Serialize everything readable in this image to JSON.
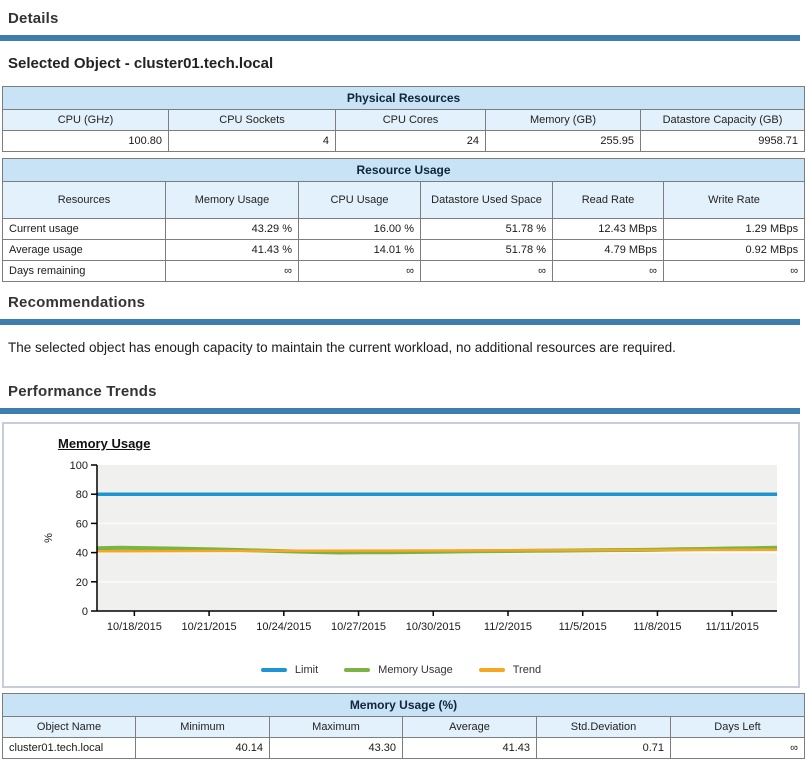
{
  "page": {
    "details_title": "Details",
    "selected_object_title": "Selected Object - cluster01.tech.local",
    "recommendations_title": "Recommendations",
    "recommendations_text": "The selected object has enough capacity to maintain the current workload, no additional resources are required.",
    "performance_trends_title": "Performance Trends"
  },
  "physical_resources": {
    "title": "Physical Resources",
    "columns": [
      "CPU (GHz)",
      "CPU Sockets",
      "CPU Cores",
      "Memory (GB)",
      "Datastore Capacity (GB)"
    ],
    "values": [
      "100.80",
      "4",
      "24",
      "255.95",
      "9958.71"
    ]
  },
  "resource_usage": {
    "title": "Resource Usage",
    "columns": [
      "Resources",
      "Memory Usage",
      "CPU Usage",
      "Datastore Used Space",
      "Read Rate",
      "Write Rate"
    ],
    "rows": [
      {
        "label": "Current usage",
        "values": [
          "43.29 %",
          "16.00 %",
          "51.78 %",
          "12.43 MBps",
          "1.29 MBps"
        ]
      },
      {
        "label": "Average usage",
        "values": [
          "41.43 %",
          "14.01 %",
          "51.78 %",
          "4.79 MBps",
          "0.92 MBps"
        ]
      },
      {
        "label": "Days remaining",
        "values": [
          "∞",
          "∞",
          "∞",
          "∞",
          "∞"
        ]
      }
    ]
  },
  "chart_data": {
    "type": "line",
    "title": "Memory Usage",
    "ylabel": "%",
    "ylim": [
      0,
      100
    ],
    "yticks": [
      0,
      20,
      40,
      60,
      80,
      100
    ],
    "x_start_day": 0.5,
    "x_end_day": 27.8,
    "xtick_days": [
      2,
      5,
      8,
      11,
      14,
      17,
      20,
      23,
      26
    ],
    "xtick_labels": [
      "10/18/2015",
      "10/21/2015",
      "10/24/2015",
      "10/27/2015",
      "10/30/2015",
      "11/2/2015",
      "11/5/2015",
      "11/8/2015",
      "11/11/2015"
    ],
    "grid": true,
    "legend_position": "bottom",
    "series": [
      {
        "name": "Limit",
        "color": "#1E95D3",
        "width": 3.5,
        "values": [
          80,
          80
        ]
      },
      {
        "name": "Memory Usage",
        "color": "#7CB342",
        "width": 4,
        "values": [
          43.0,
          43.3,
          43.1,
          42.8,
          42.5,
          42.1,
          41.7,
          41.2,
          40.8,
          40.4,
          40.1,
          40.2,
          40.3,
          40.4,
          40.6,
          40.8,
          41.0,
          41.1,
          41.3,
          41.4,
          41.5,
          41.7,
          41.8,
          42.0,
          42.3,
          42.5,
          42.8,
          43.0,
          43.3
        ]
      },
      {
        "name": "Trend",
        "color": "#F6A623",
        "width": 2.5,
        "values": [
          40.9,
          42.0
        ]
      }
    ]
  },
  "memory_usage_table": {
    "title": "Memory Usage (%)",
    "columns": [
      "Object Name",
      "Minimum",
      "Maximum",
      "Average",
      "Std.Deviation",
      "Days Left"
    ],
    "rows": [
      {
        "cells": [
          "cluster01.tech.local",
          "40.14",
          "43.30",
          "41.43",
          "0.71",
          "∞"
        ]
      }
    ]
  },
  "colors": {
    "accent_bar": "#3E7EAD",
    "table_title_bg": "#C8E3F6",
    "table_header_bg": "#E2F1FC",
    "chart_border": "#C6CDD8",
    "plot_bg": "#F0F0EE",
    "gridline": "#FBFBF9",
    "axis": "#000000",
    "limit_line": "#1E95D3",
    "memory_line": "#7CB342",
    "trend_line": "#F6A623"
  }
}
